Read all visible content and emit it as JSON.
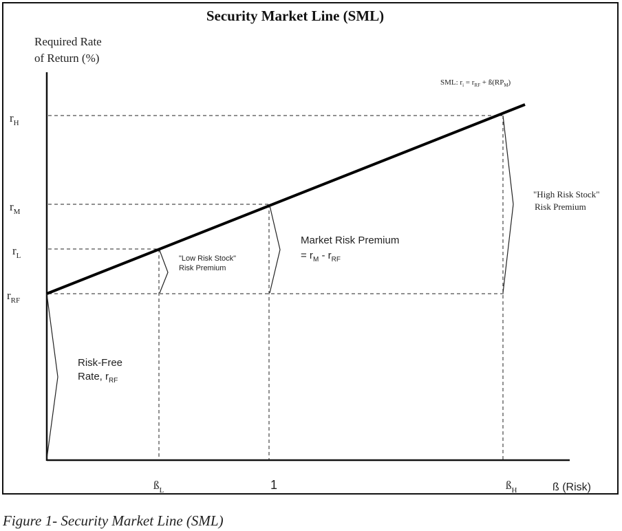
{
  "title": "Security Market Line (SML)",
  "y_axis_label_line1": "Required Rate",
  "y_axis_label_line2": "of Return (%)",
  "x_axis_label": "ß (Risk)",
  "sml_formula": {
    "prefix": "SML:  r",
    "sub_i": "i",
    "eq": " = r",
    "sub_rf": "RF",
    "plus": " + ß(RP",
    "sub_m": "M",
    "close": ")"
  },
  "y_ticks": [
    {
      "main": "r",
      "sub": "H"
    },
    {
      "main": "r",
      "sub": "M"
    },
    {
      "main": "r",
      "sub": "L"
    },
    {
      "main": "r",
      "sub": "RF"
    }
  ],
  "x_ticks": [
    {
      "main": "ß",
      "sub": "L"
    },
    {
      "main": "1",
      "sub": ""
    },
    {
      "main": "ß",
      "sub": "H"
    }
  ],
  "annotations": {
    "high_risk_line1": "\"High Risk Stock\"",
    "high_risk_line2": "Risk Premium",
    "low_risk_line1": "\"Low Risk Stock\"",
    "low_risk_line2": "Risk Premium",
    "market_premium_line1": "Market Risk Premium",
    "market_premium_line2_prefix": "= r",
    "market_premium_line2_sub1": "M",
    "market_premium_line2_mid": " - r",
    "market_premium_line2_sub2": "RF",
    "risk_free_line1": "Risk-Free",
    "risk_free_line2_prefix": "Rate, r",
    "risk_free_line2_sub": "RF"
  },
  "caption": "Figure 1- Security Market Line (SML)"
}
